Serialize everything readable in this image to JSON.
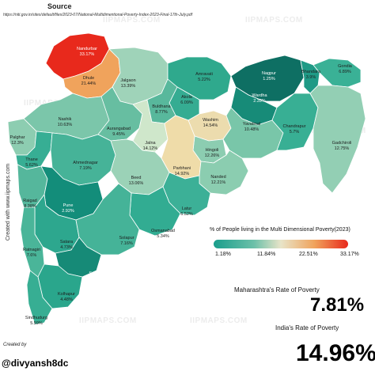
{
  "source": {
    "title": "Source",
    "url": "https://niti.gov.in/sites/default/files/2023-07/National-Multidimentional-Poverty-Index-2023-Final-17th-July.pdf"
  },
  "watermark": "IIPMAPS.COM",
  "side_credit": "Created with www.iipmaps.com",
  "districts": [
    {
      "name": "Nandurbar",
      "value": "33.17%",
      "color": "#e8291c"
    },
    {
      "name": "Dhule",
      "value": "21.44%",
      "color": "#f0a35c"
    },
    {
      "name": "Jalgaon",
      "value": "13.39%",
      "color": "#9fd3b9"
    },
    {
      "name": "Amravati",
      "value": "5.22%",
      "color": "#2fa98d"
    },
    {
      "name": "Nagpur",
      "value": "1.25%",
      "color": "#0e6f63"
    },
    {
      "name": "Bhandara",
      "value": "3.9%",
      "color": "#1f9a86"
    },
    {
      "name": "Gondia",
      "value": "6.89%",
      "color": "#3ab196"
    },
    {
      "name": "Akola",
      "value": "6.09%",
      "color": "#35ac92"
    },
    {
      "name": "Buldhana",
      "value": "8.77%",
      "color": "#58b89c"
    },
    {
      "name": "Washim",
      "value": "14.54%",
      "color": "#ecdcae"
    },
    {
      "name": "Wardha",
      "value": "2.39%",
      "color": "#178b78"
    },
    {
      "name": "Yavatmal",
      "value": "10.48%",
      "color": "#79c6a9"
    },
    {
      "name": "Chandrapur",
      "value": "5.7%",
      "color": "#38af94"
    },
    {
      "name": "Gadchiroli",
      "value": "12.75%",
      "color": "#93cfb4"
    },
    {
      "name": "Nashik",
      "value": "10.63%",
      "color": "#7bc6aa"
    },
    {
      "name": "Aurangabad",
      "value": "9.45%",
      "color": "#67bea1"
    },
    {
      "name": "Jalna",
      "value": "14.12%",
      "color": "#cfe7cb"
    },
    {
      "name": "Hingoli",
      "value": "12.26%",
      "color": "#8ccdb1"
    },
    {
      "name": "Parbhani",
      "value": "14.92%",
      "color": "#efdca9"
    },
    {
      "name": "Nanded",
      "value": "12.21%",
      "color": "#8bcdb0"
    },
    {
      "name": "Palghar",
      "value": "12.3%",
      "color": "#8dcdb1"
    },
    {
      "name": "Thane",
      "value": "5.62%",
      "color": "#37ae94"
    },
    {
      "name": "Ahmednagar",
      "value": "7.19%",
      "color": "#46b398"
    },
    {
      "name": "Beed",
      "value": "13.06%",
      "color": "#9bd2b7"
    },
    {
      "name": "Raigad",
      "value": "8.38%",
      "color": "#55b79c"
    },
    {
      "name": "Pune",
      "value": "2.92%",
      "color": "#138d7a"
    },
    {
      "name": "Latur",
      "value": "6.52%",
      "color": "#3cb097"
    },
    {
      "name": "Osmanabad",
      "value": "5.34%",
      "color": "#32ac92"
    },
    {
      "name": "Satara",
      "value": "4.73%",
      "color": "#2da78e"
    },
    {
      "name": "Solapur",
      "value": "7.16%",
      "color": "#45b398"
    },
    {
      "name": "Ratnagiri",
      "value": "7.6%",
      "color": "#4ab599"
    },
    {
      "name": "Sangli",
      "value": "2.14%",
      "color": "#168a77"
    },
    {
      "name": "Kolhapur",
      "value": "4.48%",
      "color": "#2aa68c"
    },
    {
      "name": "Sindhudurg",
      "value": "5.59%",
      "color": "#37ae93"
    }
  ],
  "legend": {
    "title": "% of People living in the Multi Dimensional Poverty(2023)",
    "ticks": [
      "1.18%",
      "11.84%",
      "22.51%",
      "33.17%"
    ]
  },
  "maharashtra": {
    "label": "Maharashtra's Rate of Poverty",
    "value": "7.81%"
  },
  "india": {
    "label": "India's Rate of Poverty",
    "value": "14.96%"
  },
  "created_by": "Created by",
  "author": "@divyansh8dc"
}
